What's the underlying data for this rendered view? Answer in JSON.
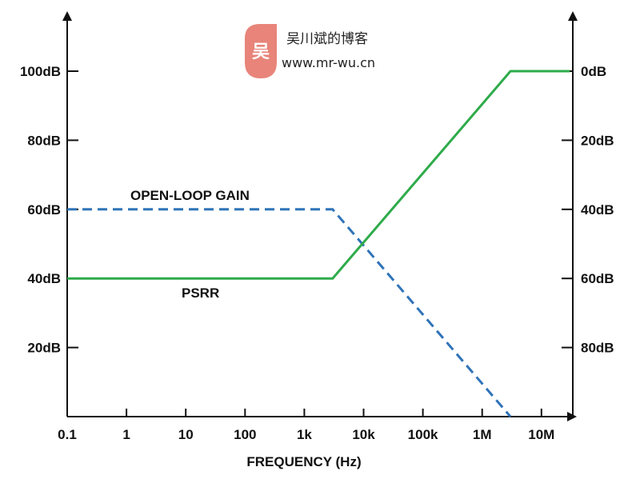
{
  "watermark": {
    "title": "吴川斌的博客",
    "url": "www.mr-wu.cn",
    "logo_glyph": "吴",
    "logo_color": "#e8847a"
  },
  "chart_data": {
    "type": "line",
    "xlabel": "FREQUENCY (Hz)",
    "x_scale": "log",
    "x_ticks": [
      {
        "value": 0.1,
        "label": "0.1"
      },
      {
        "value": 1,
        "label": "1"
      },
      {
        "value": 10,
        "label": "10"
      },
      {
        "value": 100,
        "label": "100"
      },
      {
        "value": 1000,
        "label": "1k"
      },
      {
        "value": 10000,
        "label": "10k"
      },
      {
        "value": 100000,
        "label": "100k"
      },
      {
        "value": 1000000,
        "label": "1M"
      },
      {
        "value": 10000000,
        "label": "10M"
      }
    ],
    "xlim": [
      0.1,
      30000000
    ],
    "y_left": {
      "unit": "dB",
      "ylim": [
        0,
        120
      ],
      "ticks": [
        {
          "value": 20,
          "label": "20dB"
        },
        {
          "value": 40,
          "label": "40dB"
        },
        {
          "value": 60,
          "label": "60dB"
        },
        {
          "value": 80,
          "label": "80dB"
        },
        {
          "value": 100,
          "label": "100dB"
        }
      ]
    },
    "y_right": {
      "unit": "dB",
      "inverted": true,
      "ticks": [
        {
          "value": 0,
          "label": "0dB"
        },
        {
          "value": 20,
          "label": "20dB"
        },
        {
          "value": 40,
          "label": "40dB"
        },
        {
          "value": 60,
          "label": "60dB"
        },
        {
          "value": 80,
          "label": "80dB"
        }
      ]
    },
    "grid": false,
    "series": [
      {
        "name": "OPEN-LOOP GAIN",
        "axis": "left",
        "style": "dashed",
        "color": "#2f73b8",
        "x": [
          0.1,
          3000,
          3000000
        ],
        "y": [
          60,
          60,
          0
        ]
      },
      {
        "name": "PSRR",
        "axis": "right",
        "style": "solid",
        "color": "#2eab4a",
        "x": [
          0.1,
          3000,
          3000000,
          30000000
        ],
        "y": [
          60,
          60,
          0,
          0
        ]
      }
    ]
  }
}
